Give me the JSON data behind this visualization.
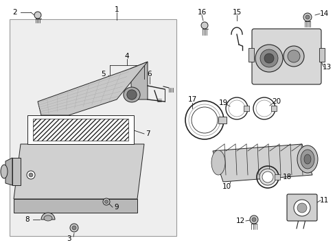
{
  "bg": "#f0f0f0",
  "lc": "#222222",
  "white": "#ffffff",
  "gray1": "#d0d0d0",
  "gray2": "#b0b0b0",
  "gray3": "#888888",
  "fig_w": 4.89,
  "fig_h": 3.6,
  "dpi": 100
}
